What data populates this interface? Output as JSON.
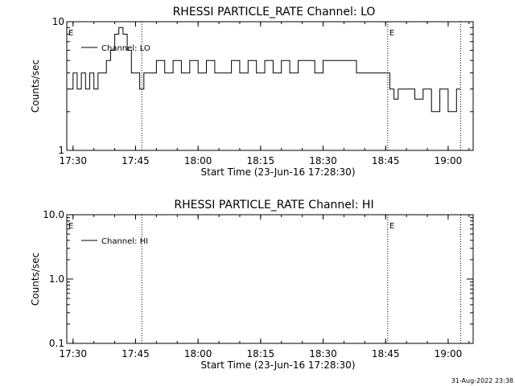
{
  "timestamp": "31-Aug-2022 23:38",
  "chart_data": [
    {
      "type": "line",
      "title": "RHESSI PARTICLE_RATE Channel: LO",
      "xlabel": "Start Time (23-Jun-16 17:28:30)",
      "ylabel": "Counts/sec",
      "yscale": "log",
      "ylim": [
        1,
        10
      ],
      "ytick_labels": [
        "1",
        "10"
      ],
      "ytick_values": [
        1,
        10
      ],
      "xlim": [
        "17:28:30",
        "19:06:00"
      ],
      "xtick_labels": [
        "17:30",
        "17:45",
        "18:00",
        "18:15",
        "18:30",
        "18:45",
        "19:00"
      ],
      "vlines": [
        "17:46:30",
        "18:45:30",
        "19:03:00"
      ],
      "markers": [
        {
          "label": "E",
          "x": "17:28:30"
        },
        {
          "label": "E",
          "x": "18:45:30"
        }
      ],
      "legend": {
        "position": "top-left",
        "entries": [
          "Channel: LO"
        ]
      },
      "series": [
        {
          "name": "Channel: LO",
          "x": [
            "17:29:00",
            "17:30:00",
            "17:31:00",
            "17:32:00",
            "17:33:00",
            "17:34:00",
            "17:35:00",
            "17:36:00",
            "17:37:00",
            "17:38:00",
            "17:39:00",
            "17:40:00",
            "17:41:00",
            "17:42:00",
            "17:43:00",
            "17:44:00",
            "17:45:00",
            "17:46:00",
            "17:47:00",
            "17:48:00",
            "17:50:00",
            "17:52:00",
            "17:54:00",
            "17:56:00",
            "17:58:00",
            "18:00:00",
            "18:02:00",
            "18:04:00",
            "18:06:00",
            "18:08:00",
            "18:10:00",
            "18:12:00",
            "18:14:00",
            "18:16:00",
            "18:18:00",
            "18:20:00",
            "18:22:00",
            "18:24:00",
            "18:26:00",
            "18:28:00",
            "18:30:00",
            "18:32:00",
            "18:34:00",
            "18:36:00",
            "18:38:00",
            "18:40:00",
            "18:42:00",
            "18:44:00",
            "18:45:00",
            "18:46:00",
            "18:47:00",
            "18:48:00",
            "18:50:00",
            "18:52:00",
            "18:54:00",
            "18:56:00",
            "18:58:00",
            "19:00:00",
            "19:02:00",
            "19:03:00"
          ],
          "values": [
            3,
            4,
            3,
            4,
            3,
            4,
            3,
            4,
            4,
            5,
            6,
            8,
            9,
            8,
            6,
            4,
            4,
            3,
            4,
            4,
            5,
            4,
            5,
            4,
            5,
            4,
            5,
            4,
            4,
            5,
            4,
            5,
            4,
            5,
            4,
            5,
            4,
            5,
            5,
            4,
            5,
            5,
            5,
            5,
            4,
            4,
            4,
            4,
            4,
            3,
            2.5,
            3,
            3,
            2.5,
            3,
            2,
            3,
            2,
            3,
            3
          ]
        }
      ]
    },
    {
      "type": "line",
      "title": "RHESSI PARTICLE_RATE Channel: HI",
      "xlabel": "Start Time (23-Jun-16 17:28:30)",
      "ylabel": "Counts/sec",
      "yscale": "log",
      "ylim": [
        0.1,
        10
      ],
      "ytick_labels": [
        "0.1",
        "1.0",
        "10.0"
      ],
      "ytick_values": [
        0.1,
        1,
        10
      ],
      "xlim": [
        "17:28:30",
        "19:06:00"
      ],
      "xtick_labels": [
        "17:30",
        "17:45",
        "18:00",
        "18:15",
        "18:30",
        "18:45",
        "19:00"
      ],
      "vlines": [
        "17:46:30",
        "18:45:30",
        "19:03:00"
      ],
      "markers": [
        {
          "label": "E",
          "x": "17:28:30"
        },
        {
          "label": "E",
          "x": "18:45:30"
        }
      ],
      "legend": {
        "position": "top-left",
        "entries": [
          "Channel: HI"
        ]
      },
      "series": [
        {
          "name": "Channel: HI",
          "x": [],
          "values": []
        }
      ]
    }
  ]
}
